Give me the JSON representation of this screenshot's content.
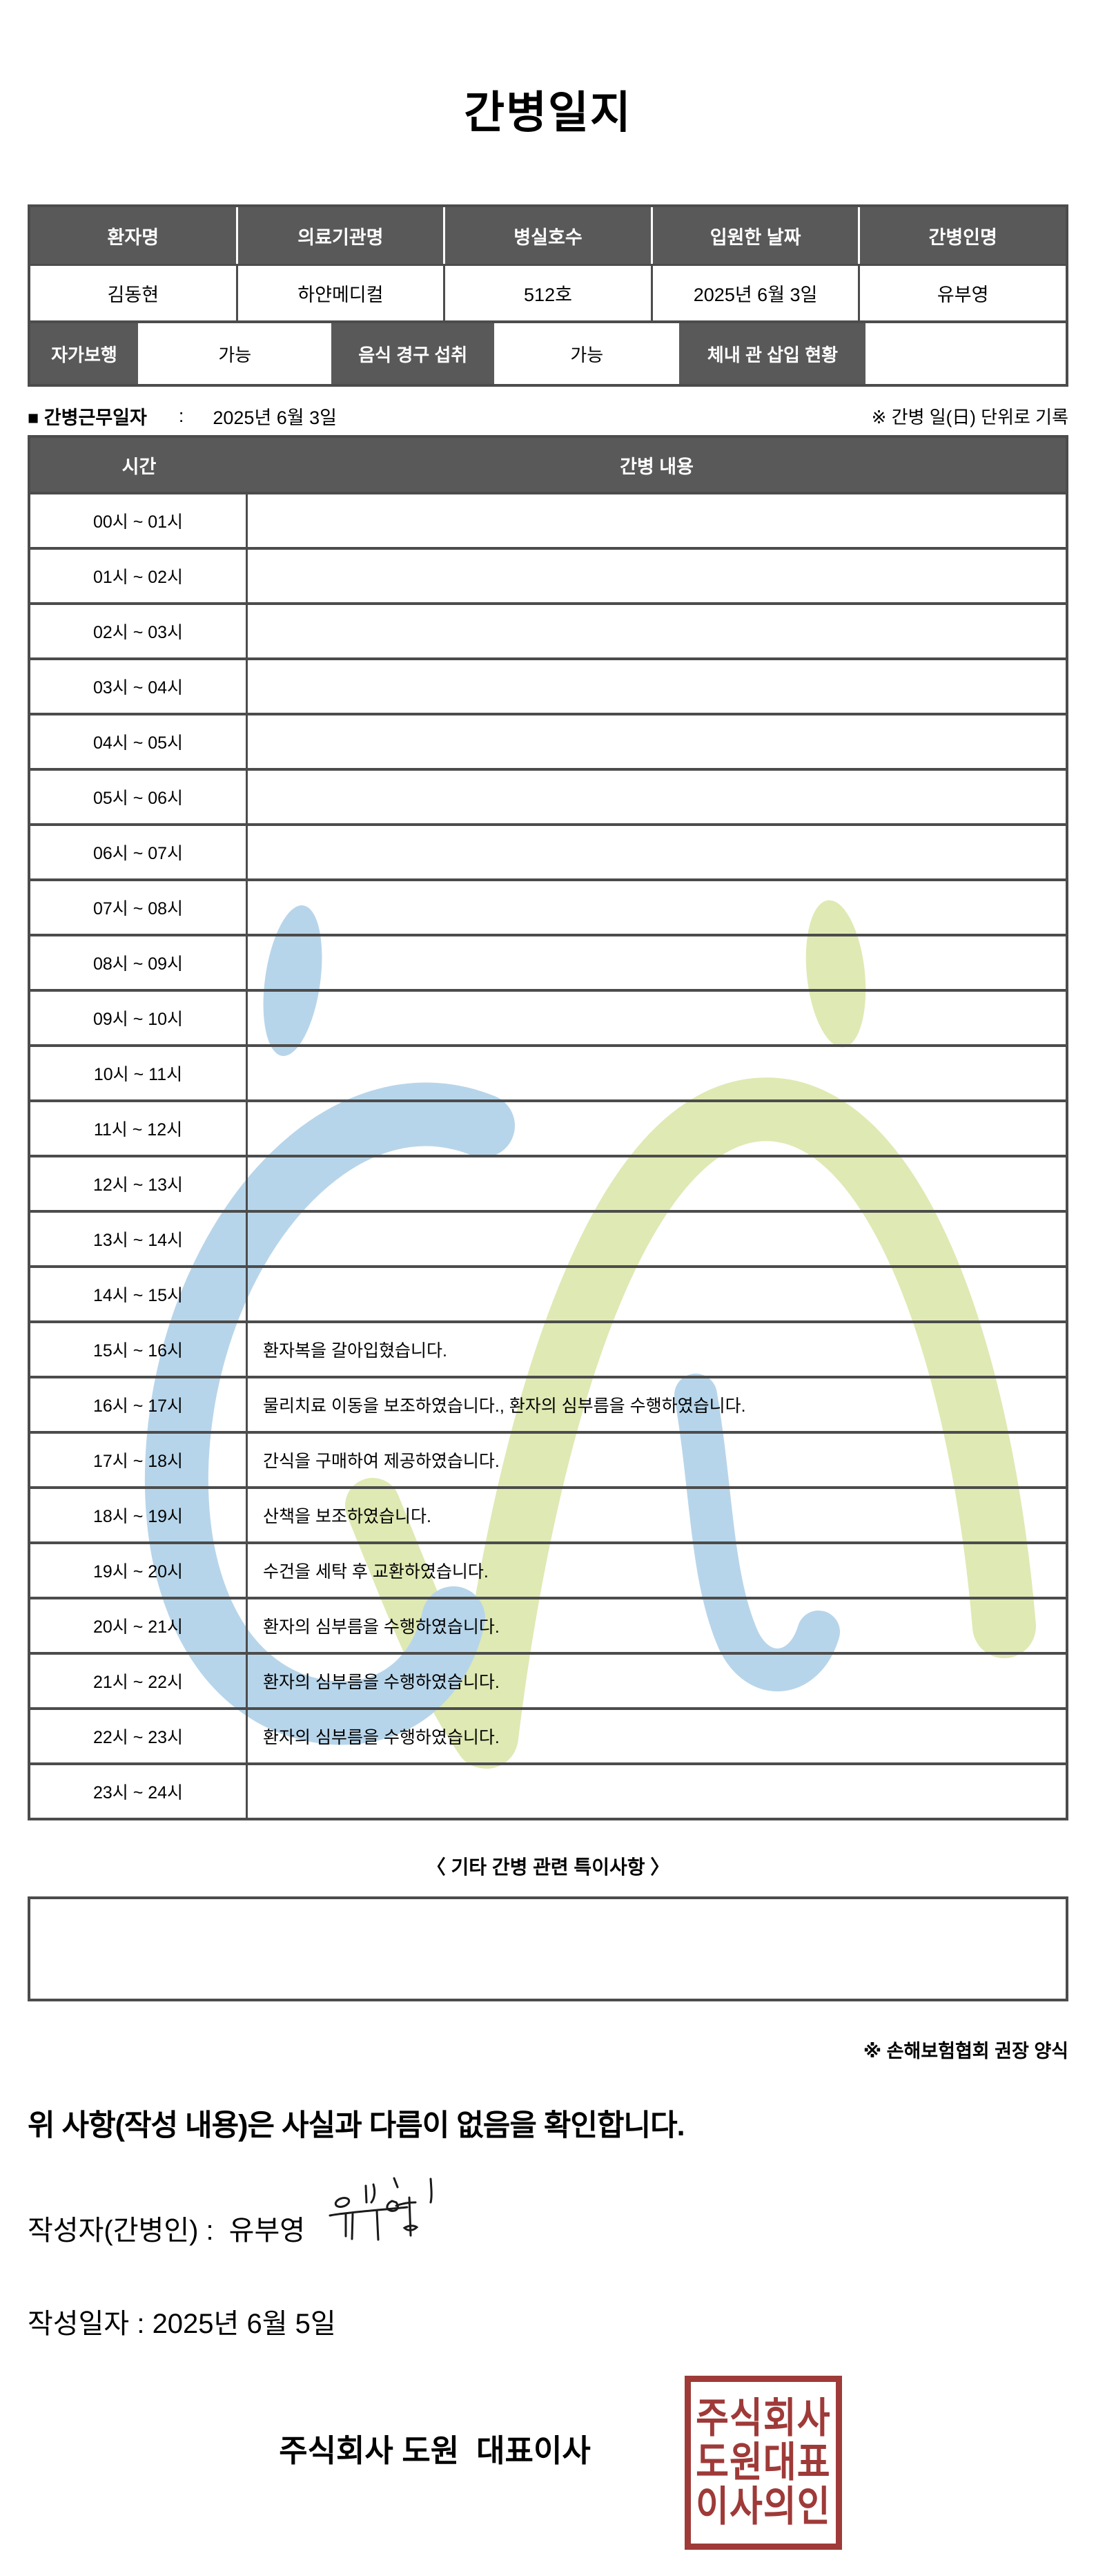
{
  "title": "간병일지",
  "info_table": {
    "headers": [
      "환자명",
      "의료기관명",
      "병실호수",
      "입원한 날짜",
      "간병인명"
    ],
    "values": [
      "김동현",
      "하얀메디컬",
      "512호",
      "2025년 6월 3일",
      "유부영"
    ],
    "sub_row": [
      {
        "label": "자가보행",
        "value": "가능"
      },
      {
        "label": "음식 경구 섭취",
        "value": "가능"
      },
      {
        "label": "체내 관 삽입 현황",
        "value": ""
      }
    ]
  },
  "work_date": {
    "label": "■ 간병근무일자",
    "colon": ":",
    "value": "2025년 6월 3일",
    "note": "※ 간병 일(日) 단위로 기록"
  },
  "care_table": {
    "time_header": "시간",
    "content_header": "간병 내용",
    "rows": [
      {
        "time": "00시 ~ 01시",
        "content": ""
      },
      {
        "time": "01시 ~ 02시",
        "content": ""
      },
      {
        "time": "02시 ~ 03시",
        "content": ""
      },
      {
        "time": "03시 ~ 04시",
        "content": ""
      },
      {
        "time": "04시 ~ 05시",
        "content": ""
      },
      {
        "time": "05시 ~ 06시",
        "content": ""
      },
      {
        "time": "06시 ~ 07시",
        "content": ""
      },
      {
        "time": "07시 ~ 08시",
        "content": ""
      },
      {
        "time": "08시 ~ 09시",
        "content": ""
      },
      {
        "time": "09시 ~ 10시",
        "content": ""
      },
      {
        "time": "10시 ~ 11시",
        "content": ""
      },
      {
        "time": "11시 ~ 12시",
        "content": ""
      },
      {
        "time": "12시 ~ 13시",
        "content": ""
      },
      {
        "time": "13시 ~ 14시",
        "content": ""
      },
      {
        "time": "14시 ~ 15시",
        "content": ""
      },
      {
        "time": "15시 ~ 16시",
        "content": "환자복을 갈아입혔습니다."
      },
      {
        "time": "16시 ~ 17시",
        "content": "물리치료 이동을 보조하였습니다., 환자의 심부름을 수행하였습니다."
      },
      {
        "time": "17시 ~ 18시",
        "content": "간식을 구매하여 제공하였습니다."
      },
      {
        "time": "18시 ~ 19시",
        "content": "산책을 보조하였습니다."
      },
      {
        "time": "19시 ~ 20시",
        "content": "수건을 세탁 후 교환하였습니다."
      },
      {
        "time": "20시 ~ 21시",
        "content": "환자의 심부름을 수행하였습니다."
      },
      {
        "time": "21시 ~ 22시",
        "content": "환자의 심부름을 수행하였습니다."
      },
      {
        "time": "22시 ~ 23시",
        "content": "환자의 심부름을 수행하였습니다."
      },
      {
        "time": "23시 ~ 24시",
        "content": ""
      }
    ]
  },
  "notes_section": {
    "title": "〈 기타 간병 관련 특이사항 〉",
    "content": "",
    "footnote": "※ 손해보험협회 권장 양식"
  },
  "footer": {
    "confirmation": "위 사항(작성 내용)은 사실과 다름이 없음을 확인합니다.",
    "writer_label": "작성자(간병인) :",
    "writer_name": "유부영",
    "date_label": "작성일자 :",
    "date_value": "2025년 6월 5일",
    "company": "주식회사 도원  대표이사",
    "seal_lines": [
      "주식회사",
      "도원대표",
      "이사의인"
    ]
  },
  "colors": {
    "header_bg": "#595959",
    "table_border": "#4c4c4c",
    "watermark_blue": "#b7d5ea",
    "watermark_green": "#dfe9b3",
    "seal_red": "#9e3a38"
  }
}
